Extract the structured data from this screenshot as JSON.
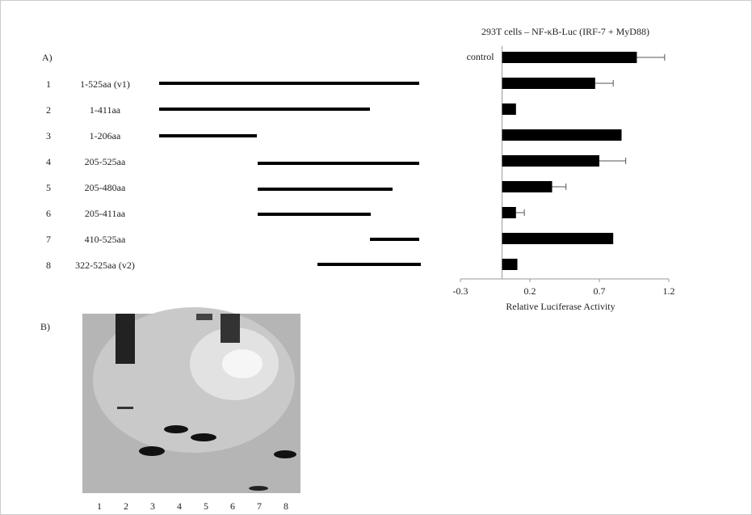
{
  "panel_a": {
    "label": "A)",
    "constructs": [
      {
        "number": "1",
        "label": "1-525aa (v1)"
      },
      {
        "number": "2",
        "label": "1-411aa"
      },
      {
        "number": "3",
        "label": "1-206aa"
      },
      {
        "number": "4",
        "label": "205-525aa"
      },
      {
        "number": "5",
        "label": "205-480aa"
      },
      {
        "number": "6",
        "label": "205-411aa"
      },
      {
        "number": "7",
        "label": "410-525aa"
      },
      {
        "number": "8",
        "label": "322-525aa (v2)"
      }
    ]
  },
  "chart_data": {
    "type": "hbar",
    "title": "293T cells – NF-κB-Luc (IRF-7 + MyD88)",
    "x_label": "Relative  Luciferase Activity",
    "categories": [
      "control",
      null,
      null,
      null,
      null,
      null,
      null,
      null,
      null
    ],
    "values": [
      0.97,
      0.67,
      0.1,
      0.86,
      0.7,
      0.36,
      0.1,
      0.8,
      0.11
    ],
    "errors": [
      0.2,
      0.13,
      null,
      null,
      0.19,
      0.1,
      0.06,
      null,
      null
    ],
    "color": "#000000",
    "xlim": [
      -0.3,
      1.2
    ],
    "xticks": [
      -0.3,
      0.2,
      0.7,
      1.2
    ]
  },
  "panel_b": {
    "label": "B)",
    "lanes": [
      "1",
      "2",
      "3",
      "4",
      "5",
      "6",
      "7",
      "8"
    ]
  }
}
